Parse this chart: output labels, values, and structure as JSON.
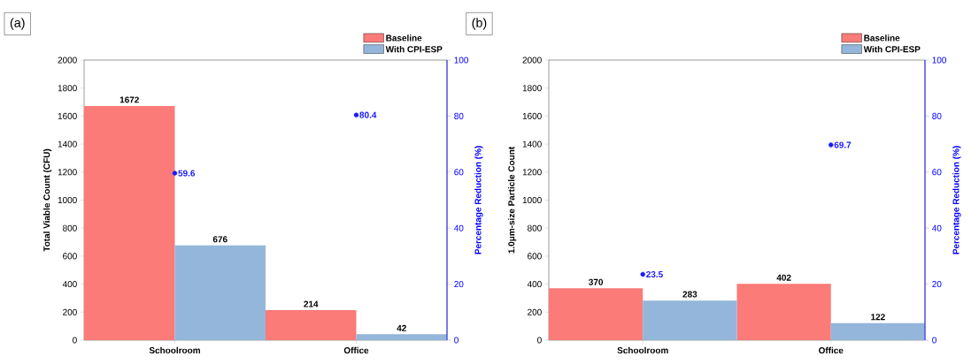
{
  "chart_data": [
    {
      "type": "bar",
      "title": "(a)",
      "ylabel": "Total Viable Count (CFU)",
      "y2label": "Percentage Reduction (%)",
      "categories": [
        "Schoolroom",
        "Office"
      ],
      "series": [
        {
          "name": "Baseline",
          "color": "#fb7b78",
          "values": [
            1672,
            214
          ]
        },
        {
          "name": "With CPI-ESP",
          "color": "#94b6da",
          "values": [
            676,
            42
          ]
        },
        {
          "type": "scatter",
          "axis": "y2",
          "color": "#1a1aff",
          "values": [
            59.6,
            80.4
          ]
        }
      ],
      "ylim": [
        0,
        2000
      ],
      "yticks": [
        0,
        200,
        400,
        600,
        800,
        1000,
        1200,
        1400,
        1600,
        1800,
        2000
      ],
      "y2lim": [
        0,
        100
      ],
      "y2ticks": [
        0,
        20,
        40,
        60,
        80,
        100
      ],
      "data_labels": true,
      "legend": "top right",
      "marker": "circle"
    },
    {
      "type": "bar",
      "title": "(b)",
      "ylabel": "1.0μm-size Particle Count",
      "y2label": "Percentage Reduction (%)",
      "categories": [
        "Schoolroom",
        "Office"
      ],
      "series": [
        {
          "name": "Baseline",
          "color": "#fb7b78",
          "values": [
            370,
            402
          ]
        },
        {
          "name": "With CPI-ESP",
          "color": "#94b6da",
          "values": [
            283,
            122
          ]
        },
        {
          "type": "scatter",
          "axis": "y2",
          "color": "#1a1aff",
          "values": [
            23.5,
            69.7
          ]
        }
      ],
      "ylim": [
        0,
        2000
      ],
      "yticks": [
        0,
        200,
        400,
        600,
        800,
        1000,
        1200,
        1400,
        1600,
        1800,
        2000
      ],
      "y2lim": [
        0,
        100
      ],
      "y2ticks": [
        0,
        20,
        40,
        60,
        80,
        100
      ],
      "data_labels": true,
      "legend": "top right",
      "marker": "circle"
    }
  ]
}
